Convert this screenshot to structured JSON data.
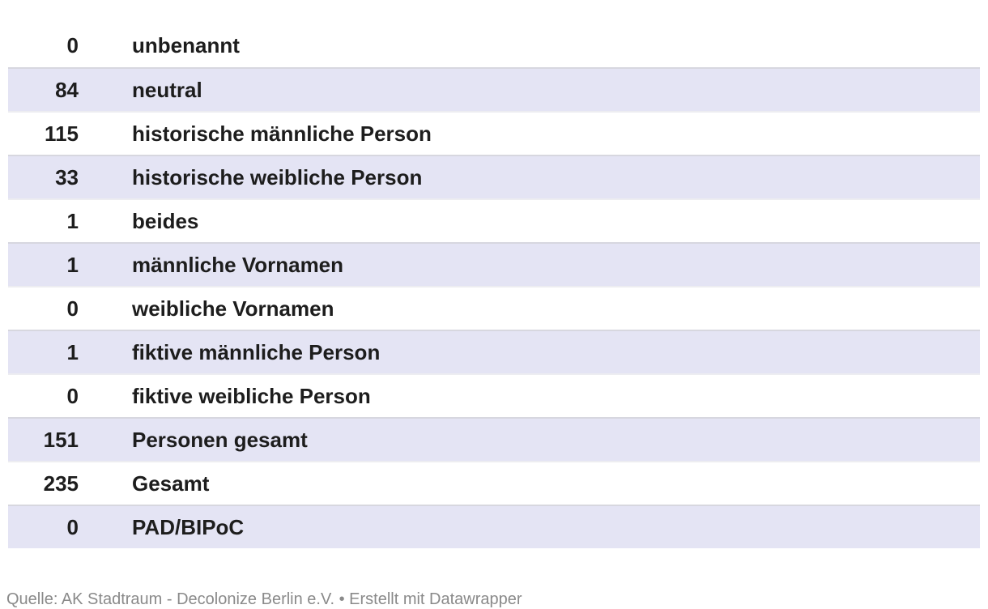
{
  "chart_data": {
    "type": "table",
    "rows": [
      {
        "value": 0,
        "label": "unbenannt"
      },
      {
        "value": 84,
        "label": "neutral"
      },
      {
        "value": 115,
        "label": "historische männliche Person"
      },
      {
        "value": 33,
        "label": "historische weibliche Person"
      },
      {
        "value": 1,
        "label": "beides"
      },
      {
        "value": 1,
        "label": "männliche Vornamen"
      },
      {
        "value": 0,
        "label": "weibliche Vornamen"
      },
      {
        "value": 1,
        "label": "fiktive männliche Person"
      },
      {
        "value": 0,
        "label": "fiktive weibliche Person"
      },
      {
        "value": 151,
        "label": "Personen gesamt"
      },
      {
        "value": 235,
        "label": "Gesamt"
      },
      {
        "value": 0,
        "label": "PAD/BIPoC"
      }
    ],
    "layout_hints": {
      "striped": true,
      "value_column_alignment": "right",
      "header_row": false
    }
  },
  "footer": {
    "text": "Quelle: AK Stadtraum - Decolonize Berlin e.V. • Erstellt mit Datawrapper"
  },
  "colors": {
    "stripe": "#e4e4f4",
    "border_dark": "#d7d7df",
    "border_light": "#ededf1",
    "text": "#1d1d1d",
    "muted": "#8a8a8a",
    "background": "#ffffff"
  }
}
